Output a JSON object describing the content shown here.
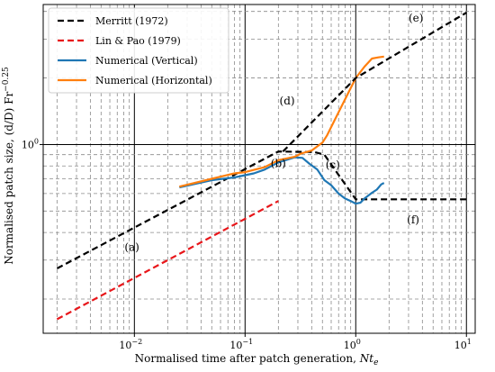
{
  "chart_data": {
    "type": "line",
    "xlabel": "Normalised time after patch generation, ",
    "xlabel_var": "Nt",
    "xlabel_sub": "e",
    "ylabel": "Normalised patch size, (d/D) Fr",
    "ylabel_exp": "−0.25",
    "x_scale": "log",
    "y_scale": "log",
    "xlim": [
      0.0015,
      12
    ],
    "ylim": [
      0.14,
      4.3
    ],
    "grid": true,
    "legend_position": "top-left",
    "x_ticks": [
      {
        "value": 0.01,
        "label": "10",
        "exp": "−2"
      },
      {
        "value": 0.1,
        "label": "10",
        "exp": "−1"
      },
      {
        "value": 1,
        "label": "10",
        "exp": "0"
      },
      {
        "value": 10,
        "label": "10",
        "exp": "1"
      }
    ],
    "y_ticks": [
      {
        "value": 1,
        "label": "10",
        "exp": "0"
      }
    ],
    "series": [
      {
        "name": "Merritt (1972)",
        "color": "#000000",
        "dash": true,
        "points": [
          [
            0.002,
            0.275
          ],
          [
            0.2,
            0.93
          ],
          [
            0.42,
            0.925
          ],
          [
            0.52,
            0.9
          ],
          [
            1.0,
            0.565
          ],
          [
            10,
            0.565
          ]
        ]
      },
      {
        "name": "Lin & Pao (1979)",
        "color": "#e8161a",
        "dash": true,
        "points": [
          [
            0.002,
            0.162
          ],
          [
            0.2,
            0.555
          ]
        ]
      },
      {
        "name": "Numerical (Vertical)",
        "color": "#1f77b4",
        "dash": false,
        "points": [
          [
            0.0255,
            0.64
          ],
          [
            0.05,
            0.69
          ],
          [
            0.08,
            0.71
          ],
          [
            0.12,
            0.74
          ],
          [
            0.15,
            0.77
          ],
          [
            0.2,
            0.83
          ],
          [
            0.28,
            0.875
          ],
          [
            0.33,
            0.87
          ],
          [
            0.38,
            0.82
          ],
          [
            0.45,
            0.77
          ],
          [
            0.52,
            0.69
          ],
          [
            0.6,
            0.655
          ],
          [
            0.7,
            0.6
          ],
          [
            0.8,
            0.57
          ],
          [
            0.9,
            0.555
          ],
          [
            1.0,
            0.54
          ],
          [
            1.1,
            0.545
          ],
          [
            1.2,
            0.57
          ],
          [
            1.4,
            0.605
          ],
          [
            1.55,
            0.625
          ],
          [
            1.7,
            0.66
          ],
          [
            1.8,
            0.67
          ]
        ]
      },
      {
        "name": "Numerical (Horizontal)",
        "color": "#ff7f0e",
        "dash": false,
        "points": [
          [
            0.0255,
            0.645
          ],
          [
            0.05,
            0.7
          ],
          [
            0.08,
            0.74
          ],
          [
            0.1,
            0.75
          ],
          [
            0.15,
            0.79
          ],
          [
            0.2,
            0.85
          ],
          [
            0.28,
            0.88
          ],
          [
            0.32,
            0.91
          ],
          [
            0.4,
            0.94
          ],
          [
            0.5,
            1.02
          ],
          [
            0.55,
            1.1
          ],
          [
            0.7,
            1.4
          ],
          [
            0.85,
            1.7
          ],
          [
            1.0,
            2.0
          ],
          [
            1.2,
            2.25
          ],
          [
            1.4,
            2.45
          ],
          [
            1.6,
            2.48
          ],
          [
            1.8,
            2.5
          ]
        ]
      },
      {
        "name": "",
        "color": "#000000",
        "dash": true,
        "points": [
          [
            0.22,
            0.93
          ],
          [
            1.0,
            2.0
          ],
          [
            10,
            3.95
          ]
        ]
      }
    ],
    "annotations": [
      {
        "text": "(a)",
        "x": 0.0095,
        "y": 0.33
      },
      {
        "text": "(b)",
        "x": 0.2,
        "y": 0.79
      },
      {
        "text": "(c)",
        "x": 0.62,
        "y": 0.78
      },
      {
        "text": "(d)",
        "x": 0.24,
        "y": 1.52
      },
      {
        "text": "(e)",
        "x": 3.5,
        "y": 3.6
      },
      {
        "text": "(f)",
        "x": 3.3,
        "y": 0.44
      }
    ]
  }
}
